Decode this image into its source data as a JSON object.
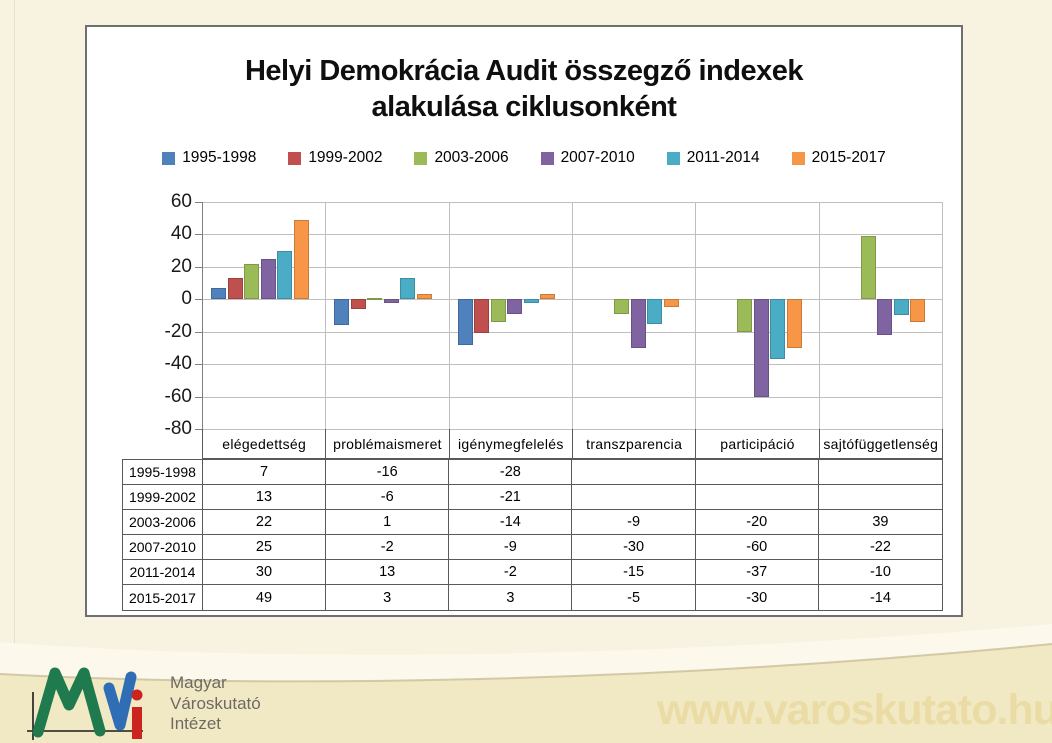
{
  "slide": {
    "background_color": "#F8F2E1",
    "watermark_url": "www.varoskutato.hu"
  },
  "logo": {
    "text_lines": [
      "Magyar",
      "Városkutató",
      "Intézet"
    ],
    "mark_colors": {
      "m": "#1F7A4D",
      "v": "#2F6DB5",
      "i": "#CC2421",
      "axis": "#1A1A1A"
    }
  },
  "chart": {
    "title_line1": "Helyi Demokrácia Audit összegző indexek",
    "title_line2": "alakulása ciklusonként"
  },
  "chart_data": {
    "type": "bar",
    "title": "Helyi Demokrácia Audit összegző indexek alakulása ciklusonként",
    "categories": [
      "elégedettség",
      "problémaismeret",
      "igénymegfelelés",
      "transzparencia",
      "participáció",
      "sajtófüggetlenség"
    ],
    "series": [
      {
        "name": "1995-1998",
        "color": "#4F81BD",
        "values": [
          7,
          -16,
          -28,
          null,
          null,
          null
        ]
      },
      {
        "name": "1999-2002",
        "color": "#C0504D",
        "values": [
          13,
          -6,
          -21,
          null,
          null,
          null
        ]
      },
      {
        "name": "2003-2006",
        "color": "#9BBB59",
        "values": [
          22,
          1,
          -14,
          -9,
          -20,
          39
        ]
      },
      {
        "name": "2007-2010",
        "color": "#8064A2",
        "values": [
          25,
          -2,
          -9,
          -30,
          -60,
          -22
        ]
      },
      {
        "name": "2011-2014",
        "color": "#4BACC6",
        "values": [
          30,
          13,
          -2,
          -15,
          -37,
          -10
        ]
      },
      {
        "name": "2015-2017",
        "color": "#F79646",
        "values": [
          49,
          3,
          3,
          -5,
          -30,
          -14
        ]
      }
    ],
    "yticks": [
      60,
      40,
      20,
      0,
      -20,
      -40,
      -60,
      -80
    ],
    "ylim": [
      -80,
      60
    ],
    "grid": true,
    "legend_position": "top",
    "data_table_shown": true
  }
}
